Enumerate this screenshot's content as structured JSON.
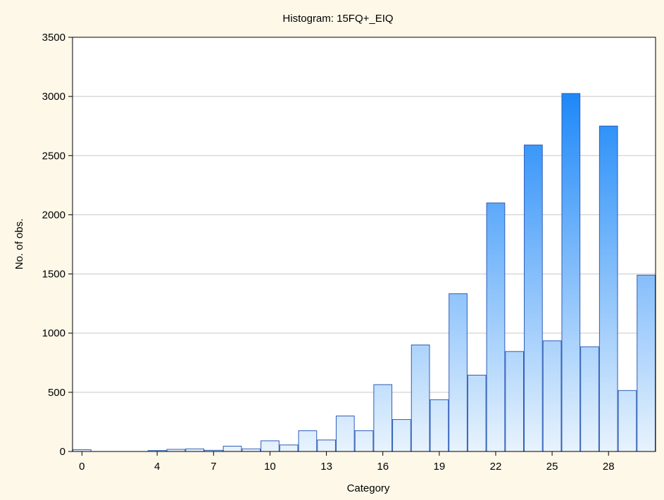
{
  "chart_data": {
    "type": "bar",
    "title": "Histogram: 15FQ+_EIQ",
    "xlabel": "Category",
    "ylabel": "No. of obs.",
    "ylim": [
      0,
      3500
    ],
    "yticks": [
      0,
      500,
      1000,
      1500,
      2000,
      2500,
      3000,
      3500
    ],
    "xtick_labels": [
      "0",
      "4",
      "7",
      "10",
      "13",
      "16",
      "19",
      "22",
      "25",
      "28"
    ],
    "categories": [
      0,
      1,
      2,
      3,
      4,
      5,
      6,
      7,
      8,
      9,
      10,
      11,
      12,
      13,
      14,
      15,
      16,
      17,
      18,
      19,
      20,
      21,
      22,
      23,
      24,
      25,
      26,
      27,
      28,
      29,
      30
    ],
    "values": [
      15,
      0,
      0,
      0,
      8,
      18,
      22,
      10,
      45,
      22,
      90,
      55,
      175,
      97,
      300,
      175,
      565,
      270,
      900,
      437,
      1333,
      645,
      2100,
      845,
      2590,
      935,
      3025,
      885,
      2750,
      515,
      1490
    ],
    "grid": "horizontal",
    "legend": "none",
    "colors": {
      "background": "#fdf8e8",
      "plot_bg": "#ffffff",
      "bar_light": "#e8f3fd",
      "bar_dark": "#1e88f8",
      "bar_edge": "#2f5db8",
      "grid": "#c8c8c8"
    }
  }
}
